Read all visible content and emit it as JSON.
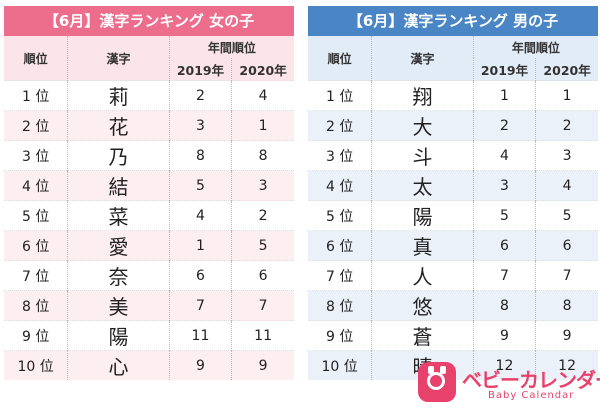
{
  "girls": {
    "title": "【6月】漢字ランキング 女の子",
    "headers": {
      "rank": "順位",
      "kanji": "漢字",
      "annual": "年間順位",
      "y2019": "2019年",
      "y2020": "2020年"
    },
    "rows": [
      {
        "rank": "1 位",
        "kanji": "莉",
        "y2019": "2",
        "y2020": "4"
      },
      {
        "rank": "2 位",
        "kanji": "花",
        "y2019": "3",
        "y2020": "1"
      },
      {
        "rank": "3 位",
        "kanji": "乃",
        "y2019": "8",
        "y2020": "8"
      },
      {
        "rank": "4 位",
        "kanji": "結",
        "y2019": "5",
        "y2020": "3"
      },
      {
        "rank": "5 位",
        "kanji": "菜",
        "y2019": "4",
        "y2020": "2"
      },
      {
        "rank": "6 位",
        "kanji": "愛",
        "y2019": "1",
        "y2020": "5"
      },
      {
        "rank": "7 位",
        "kanji": "奈",
        "y2019": "6",
        "y2020": "6"
      },
      {
        "rank": "8 位",
        "kanji": "美",
        "y2019": "7",
        "y2020": "7"
      },
      {
        "rank": "9 位",
        "kanji": "陽",
        "y2019": "11",
        "y2020": "11"
      },
      {
        "rank": "10 位",
        "kanji": "心",
        "y2019": "9",
        "y2020": "9"
      }
    ]
  },
  "boys": {
    "title": "【6月】漢字ランキング 男の子",
    "headers": {
      "rank": "順位",
      "kanji": "漢字",
      "annual": "年間順位",
      "y2019": "2019年",
      "y2020": "2020年"
    },
    "rows": [
      {
        "rank": "1 位",
        "kanji": "翔",
        "y2019": "1",
        "y2020": "1"
      },
      {
        "rank": "2 位",
        "kanji": "大",
        "y2019": "2",
        "y2020": "2"
      },
      {
        "rank": "3 位",
        "kanji": "斗",
        "y2019": "4",
        "y2020": "3"
      },
      {
        "rank": "4 位",
        "kanji": "太",
        "y2019": "3",
        "y2020": "4"
      },
      {
        "rank": "5 位",
        "kanji": "陽",
        "y2019": "5",
        "y2020": "5"
      },
      {
        "rank": "6 位",
        "kanji": "真",
        "y2019": "6",
        "y2020": "6"
      },
      {
        "rank": "7 位",
        "kanji": "人",
        "y2019": "7",
        "y2020": "7"
      },
      {
        "rank": "8 位",
        "kanji": "悠",
        "y2019": "8",
        "y2020": "8"
      },
      {
        "rank": "9 位",
        "kanji": "蒼",
        "y2019": "9",
        "y2020": "9"
      },
      {
        "rank": "10 位",
        "kanji": "晴",
        "y2019": "12",
        "y2020": "12"
      }
    ]
  },
  "logo": {
    "name": "ベビーカレンダー",
    "sub": "Baby Calendar",
    "icon": "calendar-baby-icon",
    "color": "#e8416b"
  },
  "colors": {
    "girls_accent": "#ec6d8c",
    "boys_accent": "#4a86c6"
  }
}
